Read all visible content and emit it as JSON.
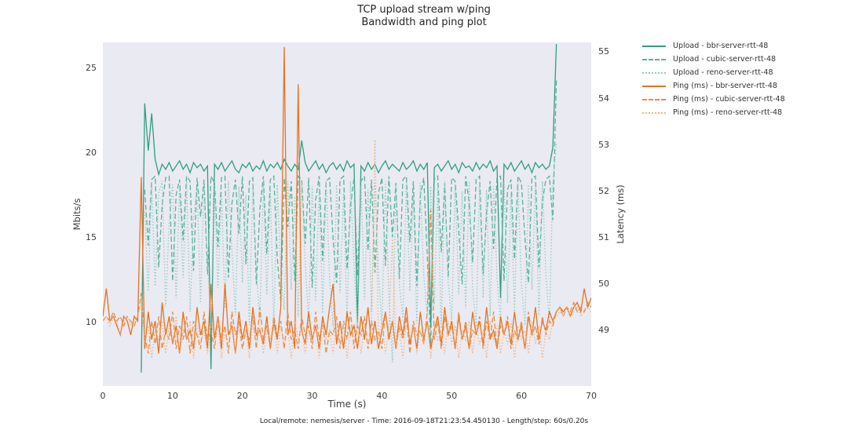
{
  "chart_data": {
    "type": "line",
    "title": "TCP upload stream w/ping",
    "subtitle": "Bandwidth and ping plot",
    "caption": "Local/remote: nemesis/server - Time: 2016-09-18T21:23:54.450130 - Length/step: 60s/0.20s",
    "x_axis": {
      "label": "Time (s)",
      "range": [
        0,
        70
      ],
      "ticks": [
        0,
        10,
        20,
        30,
        40,
        50,
        60,
        70
      ]
    },
    "left_axis": {
      "label": "Mbits/s",
      "ylim": [
        6.2,
        26.5
      ],
      "ticks": [
        10,
        15,
        20,
        25
      ]
    },
    "right_axis": {
      "label": "Latency (ms)",
      "ylim": [
        47.8,
        55.2
      ],
      "ticks": [
        49,
        50,
        51,
        52,
        53,
        54,
        55
      ]
    },
    "plot_bg_color": "#eaeaf2",
    "grid": false,
    "legend_position": "outside-top-right",
    "x_start": 0,
    "x_step": 0.5,
    "series": [
      {
        "id": "upload-bbr",
        "label": "Upload - bbr-server-rtt-48",
        "axis": "left",
        "color": "#2f9e81",
        "dash": "solid",
        "values": [
          null,
          null,
          null,
          null,
          null,
          null,
          null,
          null,
          null,
          null,
          null,
          7.0,
          22.9,
          20.1,
          22.3,
          19.6,
          18.7,
          19.3,
          19.0,
          19.4,
          18.9,
          19.2,
          19.5,
          19.0,
          19.3,
          18.8,
          19.4,
          19.1,
          19.3,
          18.9,
          19.2,
          7.2,
          19.3,
          19.0,
          19.4,
          18.9,
          19.2,
          19.5,
          19.0,
          18.8,
          19.3,
          19.1,
          19.4,
          18.9,
          19.2,
          19.0,
          19.5,
          18.9,
          19.3,
          19.1,
          19.4,
          19.0,
          19.6,
          19.2,
          18.9,
          19.3,
          19.0,
          20.7,
          19.4,
          18.9,
          19.2,
          19.5,
          19.0,
          19.3,
          18.8,
          19.2,
          19.4,
          19.0,
          19.3,
          18.9,
          19.5,
          19.1,
          19.3,
          9.9,
          19.2,
          18.9,
          19.4,
          19.0,
          19.3,
          18.8,
          19.2,
          19.5,
          19.0,
          19.3,
          19.1,
          18.9,
          19.4,
          19.0,
          19.2,
          19.5,
          18.9,
          19.3,
          19.0,
          19.4,
          9.7,
          19.1,
          19.3,
          18.9,
          19.2,
          19.5,
          19.0,
          19.3,
          18.8,
          19.4,
          19.1,
          19.2,
          18.9,
          19.4,
          19.0,
          19.3,
          19.1,
          19.5,
          18.9,
          19.2,
          11.4,
          19.3,
          19.0,
          19.4,
          18.9,
          19.2,
          19.5,
          19.0,
          19.3,
          18.8,
          19.4,
          19.1,
          19.3,
          19.0,
          19.2,
          20.3,
          26.4,
          null,
          null,
          null,
          null,
          null,
          null,
          null,
          null,
          null,
          null
        ]
      },
      {
        "id": "upload-cubic",
        "label": "Upload - cubic-server-rtt-48",
        "axis": "left",
        "color": "#56b39b",
        "dash": "dashed",
        "values": [
          null,
          null,
          null,
          null,
          null,
          null,
          null,
          null,
          null,
          null,
          null,
          null,
          17.8,
          14.5,
          18.4,
          18.6,
          13.2,
          16.9,
          18.5,
          18.6,
          12.4,
          17.5,
          18.4,
          14.8,
          18.6,
          18.3,
          13.0,
          18.5,
          16.2,
          18.4,
          12.8,
          18.6,
          18.2,
          14.4,
          18.5,
          18.6,
          12.6,
          17.0,
          18.4,
          15.2,
          18.6,
          13.4,
          18.3,
          18.5,
          12.2,
          16.6,
          18.6,
          14.0,
          18.4,
          18.6,
          13.8,
          11.2,
          18.5,
          15.6,
          18.3,
          12.4,
          18.6,
          18.4,
          14.6,
          18.5,
          12.0,
          17.2,
          18.6,
          13.6,
          18.3,
          18.5,
          14.9,
          12.3,
          18.4,
          18.6,
          13.1,
          16.8,
          18.5,
          12.7,
          18.3,
          18.6,
          14.2,
          18.4,
          12.9,
          17.6,
          18.5,
          13.3,
          18.6,
          15.0,
          18.2,
          12.5,
          18.4,
          18.6,
          14.7,
          18.3,
          12.1,
          17.4,
          18.5,
          13.9,
          8.6,
          18.4,
          18.6,
          14.1,
          18.2,
          12.6,
          18.5,
          18.3,
          15.4,
          12.2,
          18.6,
          17.0,
          13.5,
          18.4,
          18.6,
          12.8,
          16.4,
          18.3,
          14.3,
          18.5,
          18.6,
          12.4,
          17.8,
          18.4,
          13.7,
          18.6,
          18.2,
          14.9,
          12.3,
          18.5,
          18.6,
          13.2,
          17.1,
          18.4,
          18.6,
          16.0,
          24.3,
          null,
          null,
          null,
          null,
          null,
          null,
          null,
          null,
          null,
          null
        ]
      },
      {
        "id": "upload-reno",
        "label": "Upload - reno-server-rtt-48",
        "axis": "left",
        "color": "#8dcbb8",
        "dash": "dotted",
        "values": [
          null,
          null,
          null,
          null,
          null,
          null,
          null,
          null,
          null,
          null,
          null,
          null,
          16.5,
          11.8,
          18.2,
          12.1,
          17.6,
          18.3,
          10.9,
          15.8,
          18.1,
          11.4,
          17.9,
          12.6,
          18.3,
          10.6,
          16.2,
          18.0,
          11.1,
          18.3,
          13.4,
          10.2,
          18.1,
          12.0,
          17.7,
          10.8,
          18.3,
          14.2,
          10.4,
          18.0,
          12.3,
          17.5,
          9.8,
          18.2,
          13.0,
          10.1,
          18.3,
          11.6,
          17.8,
          9.5,
          18.1,
          12.8,
          10.7,
          18.3,
          11.9,
          17.4,
          10.3,
          18.2,
          13.6,
          9.9,
          18.0,
          11.2,
          17.9,
          10.5,
          18.3,
          12.5,
          9.7,
          18.1,
          11.7,
          17.6,
          10.0,
          18.3,
          13.2,
          9.6,
          18.0,
          11.3,
          17.8,
          10.6,
          18.2,
          12.9,
          9.8,
          18.3,
          11.5,
          7.6,
          18.1,
          12.2,
          10.2,
          18.3,
          11.8,
          17.5,
          9.9,
          18.2,
          12.7,
          10.4,
          18.0,
          11.0,
          17.9,
          9.6,
          18.3,
          12.4,
          10.1,
          18.1,
          11.6,
          17.7,
          10.8,
          18.3,
          12.0,
          9.7,
          18.2,
          11.4,
          17.8,
          10.3,
          18.0,
          12.6,
          9.9,
          18.3,
          11.1,
          17.6,
          10.6,
          18.2,
          12.2,
          9.8,
          18.1,
          11.9,
          17.9,
          10.4,
          18.3,
          12.8,
          10.0,
          18.2,
          20.6,
          null,
          null,
          null,
          null,
          null,
          null,
          null,
          null,
          null,
          null
        ]
      },
      {
        "id": "ping-bbr",
        "label": "Ping (ms) - bbr-server-rtt-48",
        "axis": "right",
        "color": "#e6731e",
        "dash": "solid",
        "values": [
          49.3,
          49.9,
          49.2,
          49.3,
          49.1,
          48.9,
          49.3,
          49.2,
          48.9,
          49.3,
          49.2,
          52.3,
          48.6,
          49.4,
          48.8,
          49.2,
          48.5,
          49.6,
          48.9,
          49.3,
          48.7,
          49.1,
          48.5,
          49.4,
          48.8,
          49.0,
          48.6,
          49.5,
          48.9,
          49.2,
          48.6,
          50.0,
          48.8,
          49.3,
          48.6,
          50.0,
          48.9,
          49.1,
          48.5,
          49.4,
          48.8,
          49.2,
          48.6,
          49.5,
          48.9,
          49.0,
          48.7,
          49.3,
          48.6,
          49.2,
          48.8,
          49.5,
          55.1,
          48.9,
          49.2,
          48.6,
          54.3,
          49.0,
          48.7,
          49.4,
          48.8,
          49.1,
          48.6,
          49.3,
          48.9,
          49.5,
          50.0,
          48.7,
          49.2,
          48.6,
          49.4,
          48.9,
          49.1,
          48.6,
          49.3,
          48.8,
          49.5,
          48.7,
          49.2,
          48.6,
          49.0,
          49.4,
          48.8,
          49.2,
          48.6,
          49.3,
          48.9,
          49.5,
          48.7,
          49.1,
          48.6,
          49.4,
          48.8,
          49.2,
          48.6,
          49.0,
          49.3,
          48.7,
          49.5,
          48.9,
          49.2,
          48.6,
          49.3,
          48.8,
          49.1,
          48.6,
          49.4,
          48.9,
          49.2,
          48.7,
          49.5,
          48.8,
          49.0,
          48.6,
          49.3,
          48.9,
          49.2,
          48.7,
          49.4,
          48.8,
          49.1,
          48.6,
          49.3,
          48.9,
          49.5,
          48.8,
          49.2,
          49.0,
          49.4,
          49.2,
          49.4,
          49.5,
          49.4,
          49.5,
          49.3,
          49.5,
          49.6,
          49.4,
          49.9,
          49.5,
          49.7
        ]
      },
      {
        "id": "ping-cubic",
        "label": "Ping (ms) - cubic-server-rtt-48",
        "axis": "right",
        "color": "#eb8c43",
        "dash": "dashed",
        "values": [
          49.2,
          49.3,
          49.2,
          49.4,
          49.2,
          49.3,
          49.1,
          49.3,
          49.2,
          49.1,
          49.3,
          49.8,
          48.9,
          48.5,
          49.2,
          48.7,
          49.3,
          48.6,
          49.0,
          48.8,
          49.4,
          48.6,
          49.1,
          48.8,
          49.3,
          48.5,
          49.2,
          48.9,
          48.6,
          49.4,
          48.8,
          49.0,
          48.6,
          49.3,
          48.8,
          49.1,
          48.5,
          49.4,
          48.9,
          49.2,
          48.6,
          49.0,
          48.8,
          49.3,
          48.6,
          49.5,
          48.8,
          49.1,
          48.6,
          49.3,
          48.9,
          49.2,
          48.6,
          49.4,
          48.8,
          49.0,
          48.6,
          49.3,
          48.9,
          49.1,
          48.6,
          49.4,
          48.8,
          49.2,
          48.5,
          49.0,
          48.9,
          49.3,
          48.6,
          49.2,
          48.8,
          49.4,
          48.6,
          49.1,
          48.9,
          49.3,
          48.6,
          49.2,
          48.8,
          49.0,
          48.6,
          49.4,
          48.9,
          49.2,
          48.6,
          49.1,
          48.8,
          49.3,
          48.5,
          49.2,
          48.9,
          49.0,
          48.7,
          49.4,
          51.6,
          48.8,
          49.2,
          48.6,
          49.3,
          48.9,
          49.1,
          48.6,
          49.4,
          48.8,
          49.2,
          48.6,
          49.0,
          48.9,
          49.3,
          48.6,
          49.2,
          48.8,
          49.4,
          48.6,
          49.1,
          48.9,
          49.3,
          48.6,
          49.0,
          48.8,
          49.2,
          48.6,
          49.4,
          48.9,
          49.1,
          48.7,
          49.3,
          48.9,
          49.2,
          49.1,
          49.4,
          49.5,
          49.3,
          49.5,
          49.4,
          49.6,
          49.4,
          49.5,
          49.4,
          49.6,
          49.5
        ]
      },
      {
        "id": "ping-reno",
        "label": "Ping (ms) - reno-server-rtt-48",
        "axis": "right",
        "color": "#f3b077",
        "dash": "dotted",
        "values": [
          49.2,
          49.3,
          49.1,
          49.3,
          49.2,
          48.9,
          49.2,
          49.3,
          49.1,
          49.2,
          49.3,
          49.6,
          48.7,
          49.1,
          48.4,
          49.0,
          48.8,
          49.2,
          48.5,
          49.1,
          48.7,
          49.3,
          48.5,
          49.0,
          48.8,
          49.2,
          48.4,
          49.1,
          48.7,
          49.0,
          48.5,
          49.2,
          48.8,
          49.1,
          48.4,
          49.0,
          48.7,
          49.2,
          48.5,
          49.1,
          48.8,
          49.0,
          48.4,
          49.2,
          48.7,
          49.1,
          48.5,
          49.0,
          48.8,
          49.2,
          48.5,
          49.1,
          48.7,
          49.0,
          48.4,
          49.2,
          48.8,
          49.1,
          48.5,
          49.0,
          48.7,
          49.2,
          48.4,
          49.1,
          48.8,
          49.0,
          48.5,
          49.2,
          48.7,
          49.1,
          48.4,
          49.0,
          48.8,
          49.2,
          48.5,
          49.1,
          48.7,
          49.0,
          53.1,
          48.8,
          49.2,
          48.5,
          49.1,
          51.0,
          48.7,
          49.0,
          48.4,
          49.2,
          48.8,
          49.1,
          48.5,
          49.0,
          48.7,
          49.2,
          48.4,
          49.1,
          48.8,
          49.0,
          48.5,
          49.2,
          48.7,
          49.1,
          48.4,
          49.0,
          48.8,
          49.2,
          48.5,
          49.1,
          48.7,
          49.0,
          48.4,
          49.2,
          48.8,
          49.1,
          48.5,
          49.0,
          48.7,
          49.2,
          48.4,
          49.1,
          48.8,
          49.0,
          48.5,
          49.2,
          48.7,
          49.1,
          48.4,
          49.0,
          48.8,
          49.2,
          49.3,
          49.4,
          49.3,
          49.5,
          49.3,
          49.4,
          49.5,
          49.3,
          49.4,
          49.5,
          49.4
        ]
      }
    ]
  }
}
